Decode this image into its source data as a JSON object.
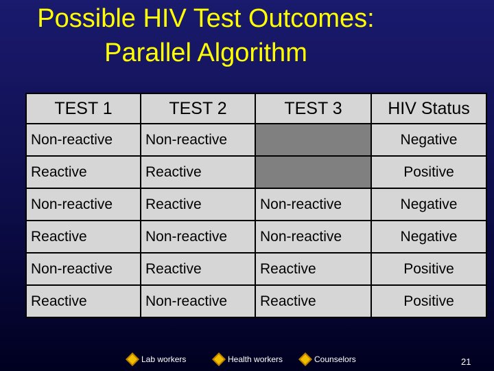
{
  "title": "Possible HIV Test Outcomes: Parallel Algorithm",
  "table": {
    "header": [
      "TEST 1",
      "TEST 2",
      "TEST 3",
      "HIV Status"
    ],
    "rows": [
      [
        "Non-reactive",
        "Non-reactive",
        null,
        "Negative"
      ],
      [
        "Reactive",
        "Reactive",
        null,
        "Positive"
      ],
      [
        "Non-reactive",
        "Reactive",
        "Non-reactive",
        "Negative"
      ],
      [
        "Reactive",
        "Non-reactive",
        "Non-reactive",
        "Negative"
      ],
      [
        "Non-reactive",
        "Reactive",
        "Reactive",
        "Positive"
      ],
      [
        "Reactive",
        "Non-reactive",
        "Reactive",
        "Positive"
      ]
    ]
  },
  "footer": {
    "legend": [
      "Lab workers",
      "Health workers",
      "Counselors"
    ],
    "page_number": "21"
  }
}
